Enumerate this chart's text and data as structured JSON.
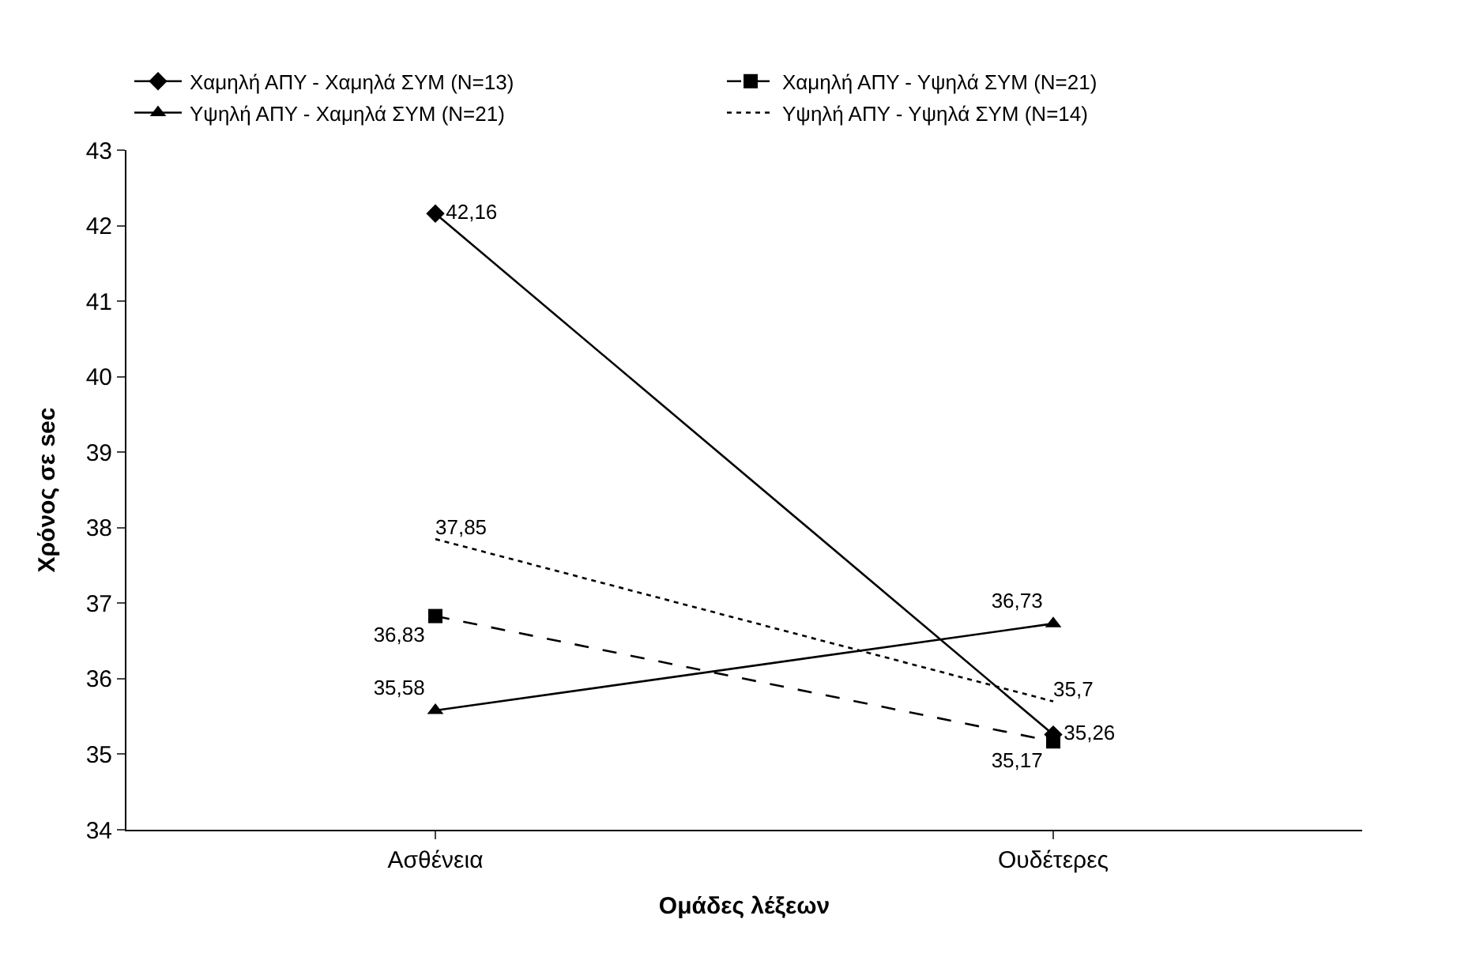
{
  "chart_data": {
    "type": "line",
    "xlabel": "Ομάδες λέξεων",
    "ylabel": "Χρόνος σε sec",
    "categories": [
      "Ασθένεια",
      "Ουδέτερες"
    ],
    "ylim": [
      34,
      43
    ],
    "yticks": [
      34,
      35,
      36,
      37,
      38,
      39,
      40,
      41,
      42,
      43
    ],
    "legend": "top",
    "series": [
      {
        "name": "Χαμηλή ΑΠΥ - Χαμηλά ΣΥΜ (N=13)",
        "color": "#000000",
        "values": [
          42.16,
          35.26
        ],
        "value_labels": [
          "42,16",
          "35,26"
        ],
        "marker": "diamond",
        "line_style": "solid"
      },
      {
        "name": "Χαμηλή ΑΠΥ - Υψηλά ΣΥΜ (N=21)",
        "color": "#000000",
        "values": [
          36.83,
          35.17
        ],
        "value_labels": [
          "36,83",
          "35,17"
        ],
        "marker": "square",
        "line_style": "dashed"
      },
      {
        "name": "Υψηλή ΑΠΥ - Χαμηλά ΣΥΜ (N=21)",
        "color": "#000000",
        "values": [
          35.58,
          36.73
        ],
        "value_labels": [
          "35,58",
          "36,73"
        ],
        "marker": "triangle",
        "line_style": "solid"
      },
      {
        "name": "Υψηλή ΑΠΥ - Υψηλά ΣΥΜ (N=14)",
        "color": "#000000",
        "values": [
          37.85,
          35.7
        ],
        "value_labels": [
          "37,85",
          "35,7"
        ],
        "marker": "none",
        "line_style": "dotted"
      }
    ]
  }
}
